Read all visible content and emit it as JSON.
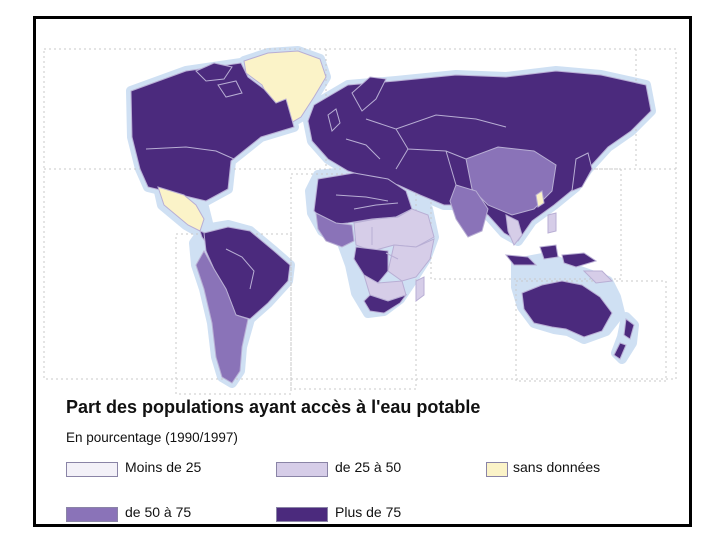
{
  "map": {
    "title": "Part des populations ayant accès à l'eau potable",
    "subtitle": "En pourcentage (1990/1997)",
    "colors": {
      "ocean": "#ffffff",
      "halo": "#cfe0f3",
      "plus_75": "#4b2a7d",
      "de_50_a_75": "#8a73b8",
      "de_25_a_50": "#d6cde8",
      "moins_25": "#f3f1f8",
      "sans_donnees": "#fbf3c8",
      "borders": "#b8aed4"
    },
    "legend": [
      {
        "label": "Moins de 25",
        "color": "#f3f1f8"
      },
      {
        "label": "de 25 à 50",
        "color": "#d6cde8"
      },
      {
        "label": "sans données",
        "color": "#fbf3c8"
      },
      {
        "label": "de 50 à 75",
        "color": "#8a73b8"
      },
      {
        "label": "Plus de 75",
        "color": "#4b2a7d"
      }
    ]
  }
}
